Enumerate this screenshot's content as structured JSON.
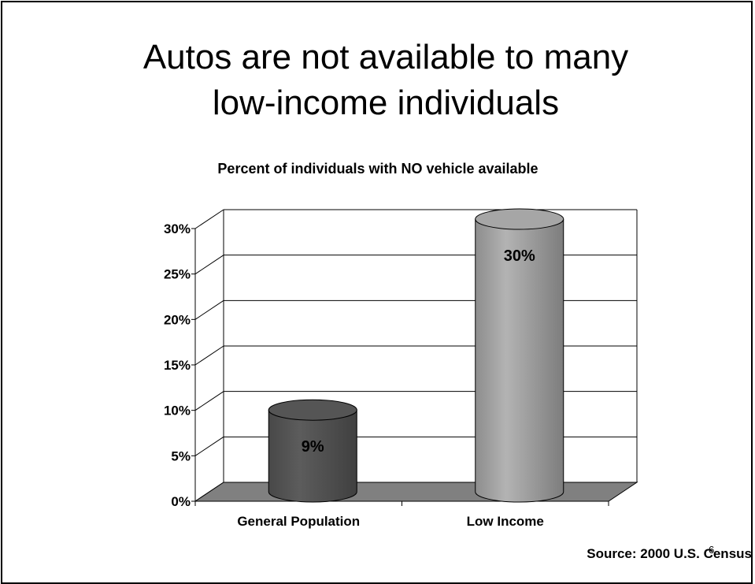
{
  "slide": {
    "title_line1": "Autos are not available to many",
    "title_line2": "low-income individuals",
    "source": "Source: 2000 U.S. Census",
    "page_number": "6"
  },
  "chart_data": {
    "type": "bar",
    "title": "Percent of individuals with NO vehicle available",
    "categories": [
      "General Population",
      "Low Income"
    ],
    "values": [
      9,
      30
    ],
    "value_labels": [
      "9%",
      "30%"
    ],
    "y_ticks": [
      "0%",
      "5%",
      "10%",
      "15%",
      "20%",
      "25%",
      "30%"
    ],
    "ylim": [
      0,
      30
    ],
    "grid": true,
    "style": "3d-cylinder",
    "colors": [
      "#555555",
      "#a6a6a6"
    ],
    "floor_color": "#808080"
  }
}
